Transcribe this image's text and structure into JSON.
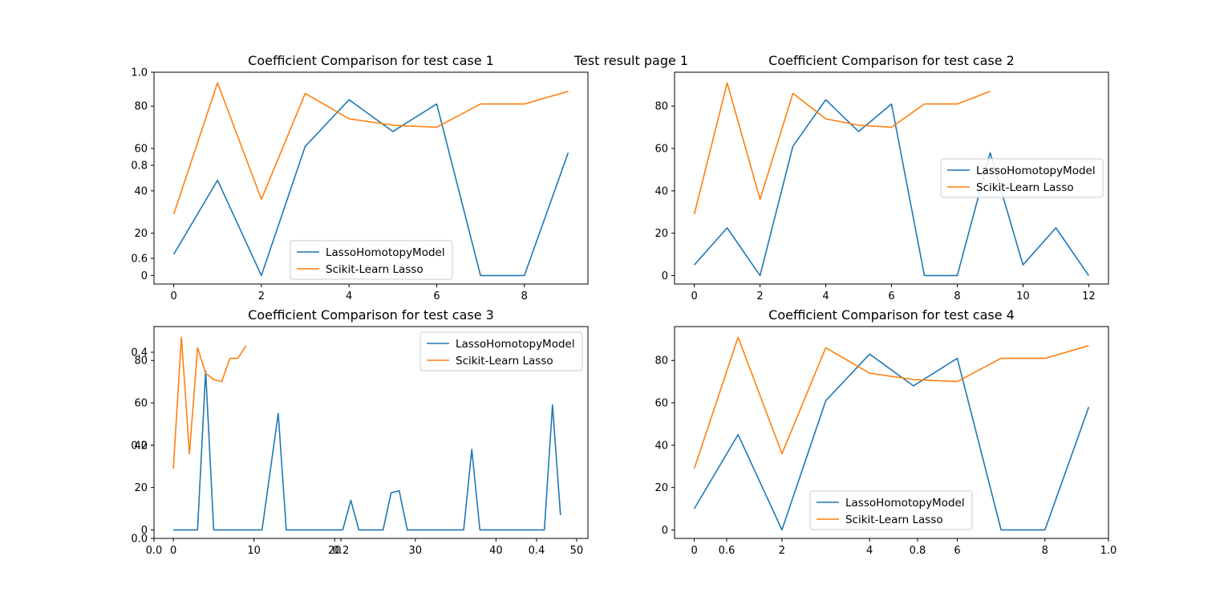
{
  "suptitle": "Test result page 1",
  "colors": {
    "homotopy": "#1f77b4",
    "sklearn": "#ff7f0e"
  },
  "chart_data": [
    {
      "type": "line",
      "title": "Coefficient Comparison for test case 1",
      "x_ticks": [
        "0",
        "2",
        "4",
        "6",
        "8"
      ],
      "y_ticks": [
        "0",
        "20",
        "40",
        "60",
        "80"
      ],
      "xlim": [
        -0.45,
        9.45
      ],
      "ylim": [
        -4,
        96
      ],
      "legend": "lower-center",
      "series": [
        {
          "name": "LassoHomotopyModel",
          "x": [
            0,
            1,
            2,
            3,
            4,
            5,
            6,
            7,
            8,
            9
          ],
          "values": [
            10,
            45,
            0,
            61,
            83,
            68,
            81,
            0,
            0,
            58
          ]
        },
        {
          "name": "Scikit-Learn Lasso",
          "x": [
            0,
            1,
            2,
            3,
            4,
            5,
            6,
            7,
            8,
            9
          ],
          "values": [
            29,
            91,
            36,
            86,
            74,
            71,
            70,
            81,
            81,
            87
          ]
        }
      ],
      "overlay_axis": {
        "y_ticks": [
          "0.6",
          "0.8",
          "1.0"
        ]
      }
    },
    {
      "type": "line",
      "title": "Coefficient Comparison for test case 2",
      "x_ticks": [
        "0",
        "2",
        "4",
        "6",
        "8",
        "10",
        "12"
      ],
      "y_ticks": [
        "0",
        "20",
        "40",
        "60",
        "80"
      ],
      "xlim": [
        -0.6,
        12.6
      ],
      "ylim": [
        -4,
        96
      ],
      "legend": "center-right",
      "series": [
        {
          "name": "LassoHomotopyModel",
          "x": [
            0,
            1,
            2,
            3,
            4,
            5,
            6,
            7,
            8,
            9,
            10,
            11,
            12
          ],
          "values": [
            5,
            22.5,
            0,
            61,
            83,
            68,
            81,
            0,
            0,
            58,
            5,
            22.5,
            0
          ]
        },
        {
          "name": "Scikit-Learn Lasso",
          "x": [
            0,
            1,
            2,
            3,
            4,
            5,
            6,
            7,
            8,
            9
          ],
          "values": [
            29,
            91,
            36,
            86,
            74,
            71,
            70,
            81,
            81,
            87
          ]
        }
      ]
    },
    {
      "type": "line",
      "title": "Coefficient Comparison for test case 3",
      "x_ticks": [
        "0",
        "10",
        "20",
        "30",
        "40",
        "50"
      ],
      "y_ticks": [
        "0",
        "20",
        "40",
        "60",
        "80"
      ],
      "xlim": [
        -2.4,
        51.4
      ],
      "ylim": [
        -4,
        96
      ],
      "legend": "upper-right",
      "series": [
        {
          "name": "LassoHomotopyModel",
          "x": [
            0,
            3,
            4,
            5,
            11,
            13,
            14,
            21,
            22,
            23,
            26,
            27,
            28,
            29,
            36,
            37,
            38,
            46,
            47,
            48
          ],
          "values": [
            0,
            0,
            75,
            0,
            0,
            55,
            0,
            0,
            14,
            0,
            0,
            17.5,
            18.5,
            0,
            0,
            38,
            0,
            0,
            59,
            7
          ]
        },
        {
          "name": "Scikit-Learn Lasso",
          "x": [
            0,
            1,
            2,
            3,
            4,
            5,
            6,
            7,
            8,
            9
          ],
          "values": [
            29,
            91,
            36,
            86,
            74,
            71,
            70,
            81,
            81,
            87
          ]
        }
      ],
      "overlay_axis": {
        "x_ticks": [
          "0.0",
          "0.2",
          "0.4"
        ],
        "y_ticks": [
          "0.0",
          "0.2",
          "0.4"
        ]
      }
    },
    {
      "type": "line",
      "title": "Coefficient Comparison for test case 4",
      "x_ticks": [
        "0",
        "2",
        "4",
        "6",
        "8"
      ],
      "y_ticks": [
        "0",
        "20",
        "40",
        "60",
        "80"
      ],
      "xlim": [
        -0.45,
        9.45
      ],
      "ylim": [
        -4,
        96
      ],
      "legend": "lower-center",
      "series": [
        {
          "name": "LassoHomotopyModel",
          "x": [
            0,
            1,
            2,
            3,
            4,
            5,
            6,
            7,
            8,
            9
          ],
          "values": [
            10,
            45,
            0,
            61,
            83,
            68,
            81,
            0,
            0,
            58
          ]
        },
        {
          "name": "Scikit-Learn Lasso",
          "x": [
            0,
            1,
            2,
            3,
            4,
            5,
            6,
            7,
            8,
            9
          ],
          "values": [
            29,
            91,
            36,
            86,
            74,
            71,
            70,
            81,
            81,
            87
          ]
        }
      ],
      "overlay_axis": {
        "x_ticks": [
          "0.6",
          "0.8",
          "1.0"
        ]
      }
    }
  ]
}
